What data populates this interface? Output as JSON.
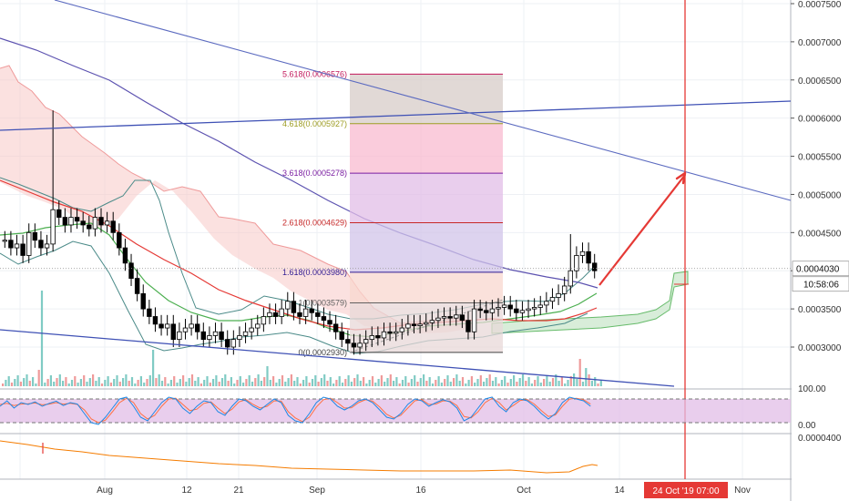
{
  "chart_data": {
    "type": "candlestick",
    "price_axis": {
      "ticks": [
        "0.0007500",
        "0.0007000",
        "0.0006500",
        "0.0006000",
        "0.0005500",
        "0.0005000",
        "0.0004500",
        "0.0004000",
        "0.0003500",
        "0.0003000"
      ],
      "current_price": "0.0004030",
      "countdown": "10:58:06"
    },
    "time_axis": {
      "ticks": [
        "Aug",
        "12",
        "21",
        "Sep",
        "16",
        "Oct",
        "14",
        "Nov"
      ],
      "highlight": "24 Oct '19   07:00"
    },
    "fibonacci": {
      "levels": [
        {
          "label": "5.618(0.0006576)",
          "value": 0.0006576,
          "color": "#c2185b",
          "fill": "#d7ccc8"
        },
        {
          "label": "4.618(0.0005927)",
          "value": 0.0005927,
          "color": "#9e9d24",
          "fill": "#f8bbd0"
        },
        {
          "label": "3.618(0.0005278)",
          "value": 0.0005278,
          "color": "#7b1fa2",
          "fill": "#e1bee7"
        },
        {
          "label": "2.618(0.0004629)",
          "value": 0.0004629,
          "color": "#c62828",
          "fill": "#d1c4e9"
        },
        {
          "label": "1.618(0.0003980)",
          "value": 0.000398,
          "color": "#311b92",
          "fill": "#f8d7cf"
        },
        {
          "label": "1(0.0003579)",
          "value": 0.0003579,
          "color": "#616161",
          "fill": "#e8d8d8"
        },
        {
          "label": "0(0.0002930)",
          "value": 0.000293,
          "color": "#424242",
          "fill": "#eeeeee"
        }
      ]
    },
    "candles_close": [
      0.00044,
      0.00043,
      0.000435,
      0.00042,
      0.00045,
      0.00044,
      0.00043,
      0.000435,
      0.00048,
      0.00047,
      0.00046,
      0.00047,
      0.000465,
      0.00046,
      0.000455,
      0.00047,
      0.00046,
      0.000465,
      0.00045,
      0.00043,
      0.00041,
      0.00039,
      0.00037,
      0.00035,
      0.00034,
      0.00033,
      0.000325,
      0.00033,
      0.00031,
      0.00032,
      0.000325,
      0.00033,
      0.00032,
      0.00031,
      0.000315,
      0.00032,
      0.00031,
      0.0003,
      0.00031,
      0.000315,
      0.00032,
      0.000325,
      0.00033,
      0.00034,
      0.000345,
      0.00034,
      0.00035,
      0.00036,
      0.000345,
      0.00034,
      0.00035,
      0.000345,
      0.00034,
      0.000335,
      0.00033,
      0.00032,
      0.00031,
      0.000305,
      0.0003,
      0.000305,
      0.00031,
      0.000315,
      0.000312,
      0.00032,
      0.000318,
      0.00032,
      0.000325,
      0.00033,
      0.000328,
      0.00033,
      0.000332,
      0.000335,
      0.000338,
      0.00034,
      0.000338,
      0.000342,
      0.000335,
      0.00032,
      0.00035,
      0.000348,
      0.000345,
      0.00035,
      0.000352,
      0.000355,
      0.00035,
      0.000345,
      0.000348,
      0.00035,
      0.000352,
      0.000355,
      0.00036,
      0.000365,
      0.00037,
      0.00038,
      0.0004,
      0.00042,
      0.000425,
      0.00041,
      0.0004
    ],
    "oscillator": {
      "ticks": [
        "100.00",
        "0.00"
      ],
      "k": [
        60,
        75,
        55,
        70,
        65,
        72,
        60,
        68,
        74,
        62,
        70,
        66,
        40,
        15,
        10,
        30,
        55,
        80,
        85,
        60,
        30,
        20,
        45,
        70,
        85,
        80,
        55,
        40,
        60,
        75,
        70,
        45,
        35,
        60,
        80,
        75,
        60,
        50,
        65,
        80,
        70,
        35,
        20,
        15,
        40,
        70,
        85,
        80,
        60,
        50,
        60,
        75,
        80,
        70,
        50,
        30,
        25,
        40,
        65,
        80,
        75,
        60,
        70,
        78,
        72,
        55,
        20,
        30,
        55,
        80,
        85,
        60,
        45,
        70,
        80,
        75,
        60,
        40,
        25,
        40,
        70,
        85,
        80,
        75,
        60
      ],
      "d": [
        65,
        68,
        62,
        66,
        67,
        69,
        64,
        66,
        70,
        66,
        68,
        65,
        50,
        25,
        15,
        22,
        45,
        70,
        82,
        70,
        40,
        25,
        35,
        60,
        80,
        82,
        65,
        48,
        52,
        68,
        72,
        55,
        40,
        52,
        72,
        78,
        65,
        55,
        60,
        75,
        74,
        45,
        28,
        18,
        30,
        58,
        78,
        82,
        70,
        55,
        56,
        70,
        78,
        74,
        58,
        38,
        28,
        35,
        55,
        75,
        78,
        65,
        66,
        75,
        74,
        62,
        32,
        28,
        45,
        70,
        82,
        70,
        50,
        62,
        76,
        78,
        66,
        48,
        32,
        36,
        60,
        80,
        82,
        78,
        66
      ]
    }
  },
  "ui": {
    "colors": {
      "bull": "#26a69a",
      "bear": "#ef5350",
      "arrow": "#e53935",
      "trend": "#3f51b5",
      "price_label": "#ffffff",
      "date_hl": "#e53935"
    }
  }
}
